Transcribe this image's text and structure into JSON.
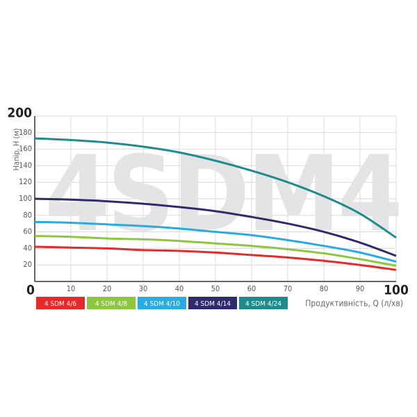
{
  "chart_data": {
    "type": "line",
    "watermark": "4SDM4",
    "ylabel": "Напір, H (м)",
    "xlabel": "Продуктивність, Q (л/хв)",
    "x": [
      0,
      10,
      20,
      30,
      40,
      50,
      60,
      70,
      80,
      90,
      100
    ],
    "xlim": [
      0,
      100
    ],
    "xticks": [
      0,
      10,
      20,
      30,
      40,
      50,
      60,
      70,
      80,
      90,
      100
    ],
    "ylim": [
      0,
      200
    ],
    "yticks": [
      20,
      40,
      60,
      80,
      100,
      120,
      140,
      160,
      180,
      200
    ],
    "grid": true,
    "series": [
      {
        "name": "4 SDM 4/6",
        "color": "#e52a2a",
        "values": [
          42,
          41,
          40,
          38,
          37,
          35,
          32,
          29,
          25,
          20,
          14
        ]
      },
      {
        "name": "4 SDM 4/8",
        "color": "#8dc63f",
        "values": [
          55,
          54,
          52,
          51,
          49,
          46,
          43,
          39,
          34,
          27,
          19
        ]
      },
      {
        "name": "4 SDM 4/10",
        "color": "#29abe2",
        "values": [
          72,
          71,
          69,
          67,
          64,
          60,
          56,
          50,
          43,
          35,
          24
        ]
      },
      {
        "name": "4 SDM 4/14",
        "color": "#2e2a6b",
        "values": [
          100,
          99,
          97,
          94,
          90,
          85,
          78,
          70,
          60,
          47,
          31
        ]
      },
      {
        "name": "4 SDM 4/24",
        "color": "#1e8c8c",
        "values": [
          173,
          171,
          168,
          163,
          156,
          146,
          134,
          120,
          103,
          82,
          53
        ]
      }
    ]
  }
}
